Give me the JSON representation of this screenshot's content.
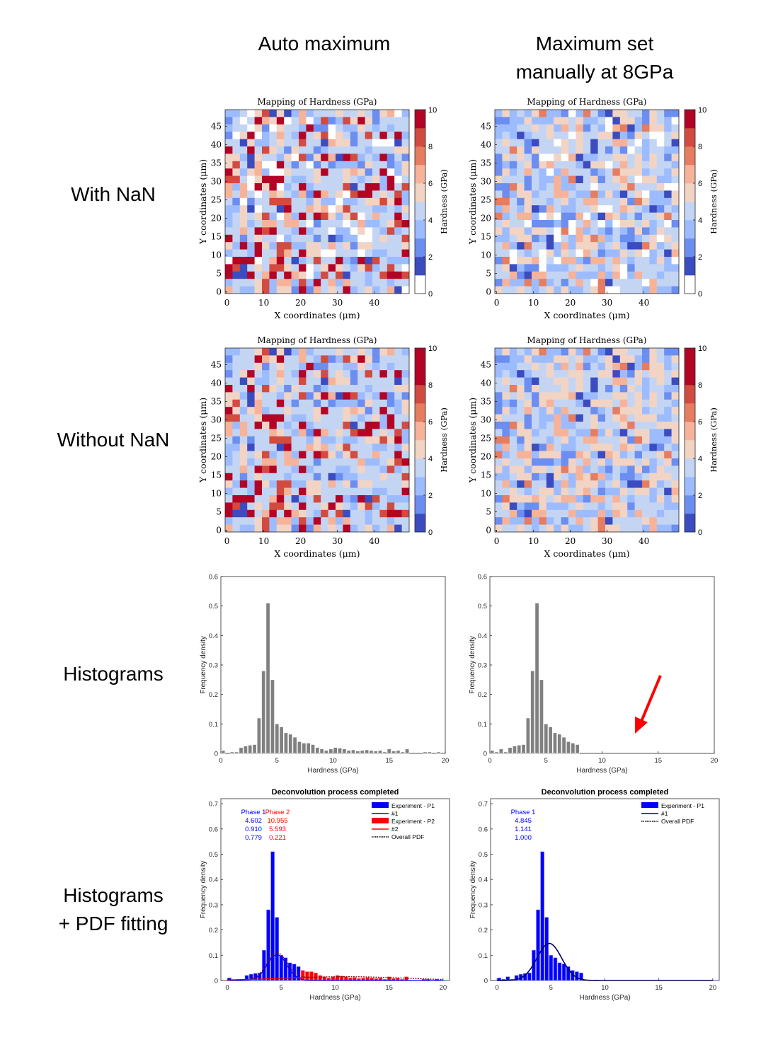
{
  "headers": {
    "col1": "Auto maximum",
    "col2": "Maximum set\nmanually at 8GPa"
  },
  "row_labels": {
    "r1": "With NaN",
    "r2": "Without NaN",
    "r3": "Histograms",
    "r4": "Histograms\n+ PDF fitting"
  },
  "colors": {
    "cmap": [
      "#ffffff",
      "#3b4cc0",
      "#6b8ef0",
      "#9dbcff",
      "#c4d5f3",
      "#f2d4c5",
      "#f6b39a",
      "#e67c60",
      "#d24b40",
      "#b40426"
    ],
    "bar_gray": "#808080",
    "phase1": "#0000ff",
    "phase2": "#ff0000",
    "fit_dark": "#00007f",
    "arrow": "#ff0000"
  },
  "chart_data": [
    {
      "type": "heatmap",
      "id": "map-nan-auto",
      "title": "Mapping of Hardness (GPa)",
      "xlabel": "X coordinates (μm)",
      "ylabel": "Y coordinates (μm)",
      "colorbar_label": "Hardness (GPa)",
      "xticks": [
        "0",
        "10",
        "20",
        "30",
        "40"
      ],
      "yticks": [
        "0",
        "5",
        "10",
        "15",
        "20",
        "25",
        "30",
        "35",
        "40",
        "45"
      ],
      "cbar_ticks": [
        "0",
        "2",
        "4",
        "6",
        "8",
        "10"
      ],
      "clim": [
        0,
        10
      ],
      "has_nan": true,
      "grid_n": 25,
      "seed": 11
    },
    {
      "type": "heatmap",
      "id": "map-nan-manual",
      "title": "Mapping of Hardness (GPa)",
      "xlabel": "X coordinates (μm)",
      "ylabel": "Y coordinates (μm)",
      "colorbar_label": "Hardness (GPa)",
      "xticks": [
        "0",
        "10",
        "20",
        "30",
        "40"
      ],
      "yticks": [
        "0",
        "5",
        "10",
        "15",
        "20",
        "25",
        "30",
        "35",
        "40",
        "45"
      ],
      "cbar_ticks": [
        "0",
        "2",
        "4",
        "6",
        "8",
        "10"
      ],
      "clim": [
        0,
        10
      ],
      "has_nan": true,
      "grid_n": 25,
      "seed": 27
    },
    {
      "type": "heatmap",
      "id": "map-nonan-auto",
      "title": "Mapping of Hardness (GPa)",
      "xlabel": "X coordinates (μm)",
      "ylabel": "Y coordinates (μm)",
      "colorbar_label": "Hardness (GPa)",
      "xticks": [
        "0",
        "10",
        "20",
        "30",
        "40"
      ],
      "yticks": [
        "0",
        "5",
        "10",
        "15",
        "20",
        "25",
        "30",
        "35",
        "40",
        "45"
      ],
      "cbar_ticks": [
        "0",
        "2",
        "4",
        "6",
        "8",
        "10"
      ],
      "clim": [
        0,
        10
      ],
      "has_nan": false,
      "grid_n": 25,
      "seed": 11
    },
    {
      "type": "heatmap",
      "id": "map-nonan-manual",
      "title": "Mapping of Hardness (GPa)",
      "xlabel": "X coordinates (μm)",
      "ylabel": "Y coordinates (μm)",
      "colorbar_label": "Hardness (GPa)",
      "xticks": [
        "0",
        "10",
        "20",
        "30",
        "40"
      ],
      "yticks": [
        "0",
        "5",
        "10",
        "15",
        "20",
        "25",
        "30",
        "35",
        "40",
        "45"
      ],
      "cbar_ticks": [
        "0",
        "2",
        "4",
        "6",
        "8",
        "10"
      ],
      "clim": [
        0,
        10
      ],
      "has_nan": false,
      "grid_n": 25,
      "seed": 27
    },
    {
      "type": "bar",
      "id": "hist-auto",
      "xlabel": "Hardness (GPa)",
      "ylabel": "Frequency density",
      "xlim": [
        0,
        20
      ],
      "ylim": [
        0,
        0.6
      ],
      "xticks": [
        "0",
        "5",
        "10",
        "15",
        "20"
      ],
      "yticks": [
        "0",
        "0.1",
        "0.2",
        "0.3",
        "0.4",
        "0.5",
        "0.6"
      ],
      "bin_width": 0.4,
      "bin_centers": [
        0.2,
        0.6,
        1.0,
        1.4,
        1.8,
        2.2,
        2.6,
        3.0,
        3.4,
        3.8,
        4.2,
        4.6,
        5.0,
        5.4,
        5.8,
        6.2,
        6.6,
        7.0,
        7.4,
        7.8,
        8.2,
        8.6,
        9.0,
        9.4,
        9.8,
        10.2,
        10.6,
        11.0,
        11.4,
        11.8,
        12.2,
        12.6,
        13.0,
        13.4,
        13.8,
        14.2,
        14.6,
        15.0,
        15.4,
        15.8,
        16.2,
        16.6,
        17.0,
        17.4,
        17.8,
        18.2,
        18.6,
        19.0,
        19.4,
        19.8
      ],
      "values": [
        0.01,
        0,
        0.005,
        0.005,
        0.02,
        0.025,
        0.028,
        0.03,
        0.12,
        0.28,
        0.51,
        0.25,
        0.1,
        0.09,
        0.07,
        0.065,
        0.055,
        0.04,
        0.035,
        0.035,
        0.03,
        0.02,
        0.015,
        0.01,
        0.015,
        0.02,
        0.018,
        0.015,
        0.01,
        0.012,
        0.008,
        0.01,
        0.012,
        0.01,
        0.008,
        0.01,
        0.005,
        0.015,
        0.008,
        0.01,
        0.005,
        0.015,
        0,
        0,
        0,
        0.005,
        0.005,
        0,
        0.005,
        0
      ]
    },
    {
      "type": "bar",
      "id": "hist-manual",
      "xlabel": "Hardness (GPa)",
      "ylabel": "Frequency density",
      "xlim": [
        0,
        20
      ],
      "ylim": [
        0,
        0.6
      ],
      "xticks": [
        "0",
        "5",
        "10",
        "15",
        "20"
      ],
      "yticks": [
        "0",
        "0.1",
        "0.2",
        "0.3",
        "0.4",
        "0.5",
        "0.6"
      ],
      "bin_width": 0.4,
      "bin_centers": [
        0.2,
        0.6,
        1.0,
        1.4,
        1.8,
        2.2,
        2.6,
        3.0,
        3.4,
        3.8,
        4.2,
        4.6,
        5.0,
        5.4,
        5.8,
        6.2,
        6.6,
        7.0,
        7.4,
        7.8
      ],
      "values": [
        0.01,
        0.005,
        0.015,
        0.005,
        0.02,
        0.025,
        0.028,
        0.03,
        0.12,
        0.28,
        0.51,
        0.25,
        0.1,
        0.09,
        0.07,
        0.065,
        0.055,
        0.04,
        0.035,
        0.03
      ]
    },
    {
      "type": "bar",
      "id": "deconv-auto",
      "title": "Deconvolution process completed",
      "xlabel": "Hardness (GPa)",
      "ylabel": "Frequency density",
      "xlim": [
        -0.6,
        20.6
      ],
      "ylim": [
        0,
        0.72
      ],
      "xticks": [
        "0",
        "5",
        "10",
        "15",
        "20"
      ],
      "yticks": [
        "0",
        "0.1",
        "0.2",
        "0.3",
        "0.4",
        "0.5",
        "0.6",
        "0.7"
      ],
      "phase_table": {
        "headers": [
          "Phase 1",
          "Phase 2"
        ],
        "rows": [
          [
            "4.602",
            "10.955"
          ],
          [
            "0.910",
            "5.593"
          ],
          [
            "0.779",
            "0.221"
          ]
        ]
      },
      "legend": [
        "Experiment - P1",
        "#1",
        "Experiment - P2",
        "#2",
        "Overall PDF"
      ],
      "bin_width": 0.4,
      "p1_centers": [
        0.2,
        0.6,
        1.0,
        1.4,
        1.8,
        2.2,
        2.6,
        3.0,
        3.4,
        3.8,
        4.2,
        4.6,
        5.0,
        5.4,
        5.8,
        6.2,
        6.6
      ],
      "p1_values": [
        0.01,
        0,
        0.005,
        0.005,
        0.02,
        0.025,
        0.028,
        0.03,
        0.12,
        0.28,
        0.51,
        0.25,
        0.1,
        0.09,
        0.07,
        0.065,
        0.055
      ],
      "p2_centers": [
        7.0,
        7.4,
        7.8,
        8.2,
        8.6,
        9.0,
        9.4,
        9.8,
        10.2,
        10.6,
        11.0,
        11.4,
        11.8,
        12.2,
        12.6,
        13.0,
        13.4,
        13.8,
        14.2,
        14.6,
        15.0,
        15.4,
        15.8,
        16.2,
        16.6,
        17.0,
        17.4,
        17.8,
        18.2,
        18.6,
        19.0,
        19.4,
        19.8
      ],
      "p2_values": [
        0.04,
        0.035,
        0.035,
        0.03,
        0.02,
        0.015,
        0.01,
        0.015,
        0.02,
        0.018,
        0.015,
        0.01,
        0.012,
        0.008,
        0.01,
        0.012,
        0.01,
        0.008,
        0.01,
        0.005,
        0.015,
        0.008,
        0.01,
        0.005,
        0.015,
        0,
        0,
        0,
        0.005,
        0.005,
        0,
        0.005,
        0
      ],
      "fit1": {
        "mean": 4.602,
        "sd": 0.91,
        "weight": 0.779
      },
      "fit2": {
        "mean": 10.955,
        "sd": 5.593,
        "weight": 0.221
      }
    },
    {
      "type": "bar",
      "id": "deconv-manual",
      "title": "Deconvolution process completed",
      "xlabel": "Hardness (GPa)",
      "ylabel": "Frequency density",
      "xlim": [
        -0.6,
        20.6
      ],
      "ylim": [
        0,
        0.72
      ],
      "xticks": [
        "0",
        "5",
        "10",
        "15",
        "20"
      ],
      "yticks": [
        "0",
        "0.1",
        "0.2",
        "0.3",
        "0.4",
        "0.5",
        "0.6",
        "0.7"
      ],
      "phase_table": {
        "headers": [
          "Phase 1"
        ],
        "rows": [
          [
            "4.845"
          ],
          [
            "1.141"
          ],
          [
            "1.000"
          ]
        ]
      },
      "legend": [
        "Experiment - P1",
        "#1",
        "Overall PDF"
      ],
      "bin_width": 0.4,
      "p1_centers": [
        0.2,
        0.6,
        1.0,
        1.4,
        1.8,
        2.2,
        2.6,
        3.0,
        3.4,
        3.8,
        4.2,
        4.6,
        5.0,
        5.4,
        5.8,
        6.2,
        6.6,
        7.0,
        7.4,
        7.8
      ],
      "p1_values": [
        0.01,
        0.005,
        0.015,
        0.005,
        0.02,
        0.025,
        0.028,
        0.03,
        0.12,
        0.28,
        0.51,
        0.25,
        0.1,
        0.09,
        0.07,
        0.065,
        0.055,
        0.04,
        0.035,
        0.03
      ],
      "fit1": {
        "mean": 4.845,
        "sd": 1.141,
        "weight": 1.0
      }
    }
  ]
}
